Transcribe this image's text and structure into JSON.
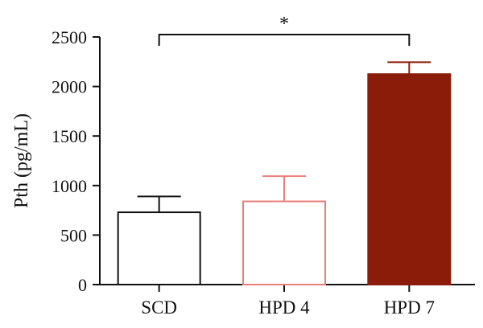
{
  "chart_data": {
    "type": "bar",
    "title": "",
    "xlabel": "",
    "ylabel": "Pth (pg/mL)",
    "ylim": [
      0,
      2500
    ],
    "yticks": [
      0,
      500,
      1000,
      1500,
      2000,
      2500
    ],
    "categories": [
      "SCD",
      "HPD 4",
      "HPD 7"
    ],
    "values": [
      730,
      840,
      2125
    ],
    "errors": [
      160,
      255,
      120
    ],
    "grid": false,
    "bars": [
      {
        "stroke": "#111111",
        "fill": "#ffffff"
      },
      {
        "stroke": "#e8807a",
        "fill": "#ffffff"
      },
      {
        "stroke": "#8b1c0a",
        "fill": "#8b1c0a"
      }
    ],
    "significance": {
      "from": 0,
      "to": 2,
      "label": "*"
    }
  }
}
